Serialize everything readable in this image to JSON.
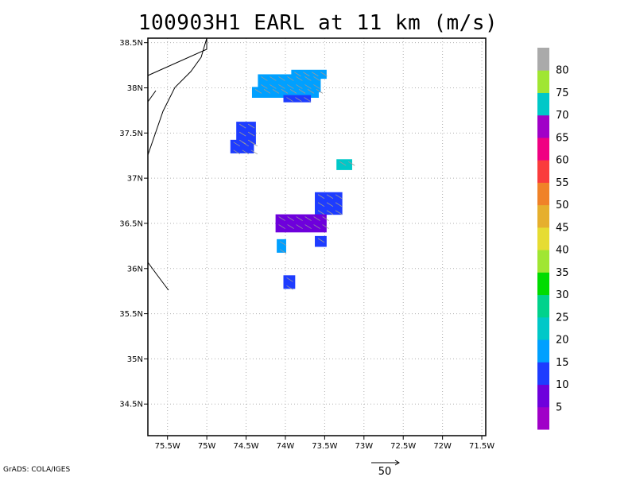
{
  "title": "100903H1 EARL at 11 km (m/s)",
  "credit": "GrADS: COLA/IGES",
  "vector_ref_label": "50",
  "chart_data": {
    "type": "heatmap",
    "title": "100903H1 EARL at 11 km (m/s)",
    "x_ticks": [
      "75.5W",
      "75W",
      "74.5W",
      "74W",
      "73.5W",
      "73W",
      "72.5W",
      "72W",
      "71.5W"
    ],
    "y_ticks": [
      "38.5N",
      "38N",
      "37.5N",
      "37N",
      "36.5N",
      "36N",
      "35.5N",
      "35N",
      "34.5N"
    ],
    "xlim": [
      -75.75,
      -71.45
    ],
    "ylim": [
      34.15,
      38.55
    ],
    "grid": true,
    "colorbar_labels": [
      "5",
      "10",
      "15",
      "20",
      "25",
      "30",
      "35",
      "40",
      "45",
      "50",
      "55",
      "60",
      "65",
      "70",
      "75",
      "80"
    ],
    "colorbar_colors": [
      "#a000c8",
      "#6e00dc",
      "#1e3cff",
      "#00a0ff",
      "#00c8c8",
      "#00d28c",
      "#00dc00",
      "#a0e632",
      "#e6dc32",
      "#e6af2d",
      "#f08228",
      "#fa3c3c",
      "#f00082",
      "#a000c8",
      "#00c8c8",
      "#a0e632",
      "#aaaaaa"
    ],
    "cells": [
      {
        "lon": -73.95,
        "lat": 38.05,
        "w": 0.8,
        "h": 0.2,
        "speed": 18
      },
      {
        "lon": -74.0,
        "lat": 37.95,
        "w": 0.85,
        "h": 0.12,
        "speed": 18
      },
      {
        "lon": -73.7,
        "lat": 38.15,
        "w": 0.45,
        "h": 0.1,
        "speed": 18
      },
      {
        "lon": -73.85,
        "lat": 37.88,
        "w": 0.35,
        "h": 0.08,
        "speed": 13
      },
      {
        "lon": -74.5,
        "lat": 37.5,
        "w": 0.25,
        "h": 0.25,
        "speed": 13
      },
      {
        "lon": -74.55,
        "lat": 37.35,
        "w": 0.3,
        "h": 0.15,
        "speed": 13
      },
      {
        "lon": -73.25,
        "lat": 37.15,
        "w": 0.2,
        "h": 0.12,
        "speed": 23
      },
      {
        "lon": -73.45,
        "lat": 36.72,
        "w": 0.35,
        "h": 0.25,
        "speed": 13
      },
      {
        "lon": -73.8,
        "lat": 36.5,
        "w": 0.65,
        "h": 0.2,
        "speed": 8
      },
      {
        "lon": -73.55,
        "lat": 36.3,
        "w": 0.15,
        "h": 0.12,
        "speed": 13
      },
      {
        "lon": -74.05,
        "lat": 36.25,
        "w": 0.12,
        "h": 0.15,
        "speed": 18
      },
      {
        "lon": -73.95,
        "lat": 35.85,
        "w": 0.15,
        "h": 0.15,
        "speed": 13
      }
    ]
  }
}
